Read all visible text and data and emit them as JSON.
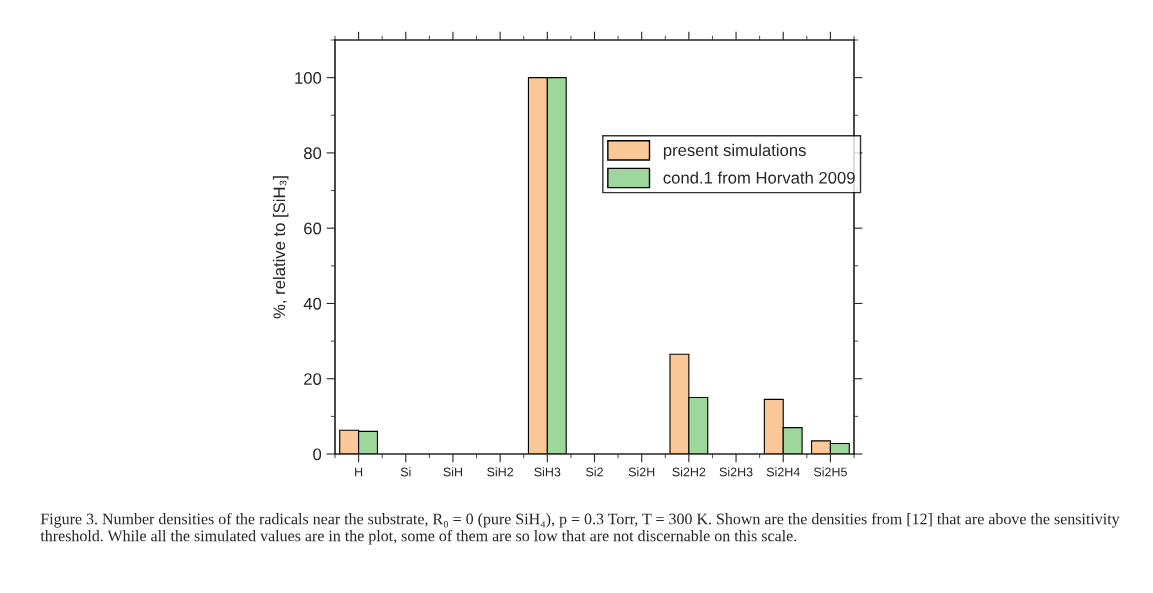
{
  "chart_data": {
    "type": "bar",
    "ylabel": "%, relative to [SiH₃]",
    "categories": [
      "H",
      "Si",
      "SiH",
      "SiH2",
      "SiH3",
      "Si2",
      "Si2H",
      "Si2H2",
      "Si2H3",
      "Si2H4",
      "Si2H5"
    ],
    "series": [
      {
        "name": "present simulations",
        "color": "#fac896",
        "values": [
          6.3,
          null,
          null,
          null,
          100,
          null,
          null,
          26.5,
          null,
          14.5,
          3.5
        ]
      },
      {
        "name": "cond.1 from Horvath 2009",
        "color": "#9ed79c",
        "values": [
          6.0,
          null,
          null,
          null,
          100,
          null,
          null,
          15,
          null,
          7,
          2.8
        ]
      }
    ],
    "ylim": [
      0,
      110
    ],
    "yticks": [
      0,
      20,
      40,
      60,
      80,
      100
    ],
    "grid": false,
    "legend": "right",
    "annotations": [
      "Figure 3. Number densities of the radicals near the substrate, R₀ = 0 (pure SiH₄), p = 0.3 Torr, T = 300 K. Shown are the densities from [12] that are above the sensitivity threshold. While all the simulated values are in the plot, some of them are so low that are not discernable on this scale."
    ]
  }
}
